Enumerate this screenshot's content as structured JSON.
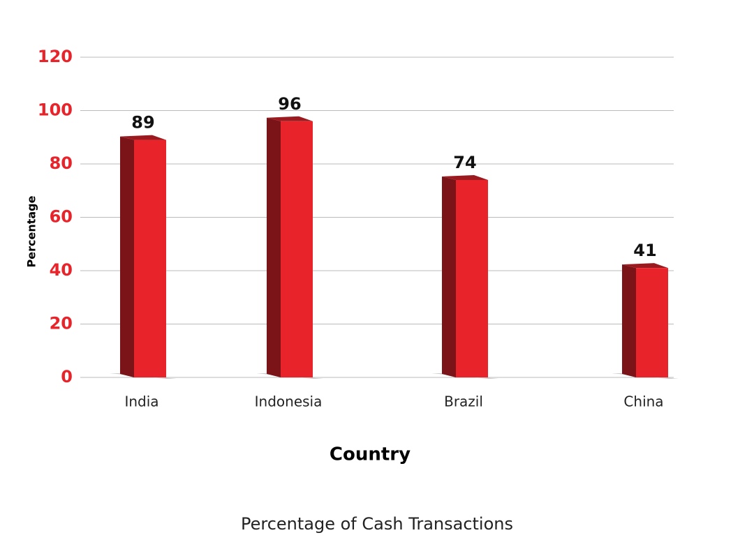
{
  "chart_data": {
    "type": "bar3d",
    "title": "Percentage of Cash Transactions",
    "x_label": "Country",
    "y_label": "Percentage",
    "categories": [
      "India",
      "Indonesia",
      "Brazil",
      "China"
    ],
    "values": [
      89,
      96,
      74,
      41
    ],
    "color": "#e8232a",
    "side_color": "#7a1418",
    "tick_color": "#e8232a",
    "ylim": [
      0,
      120
    ],
    "yticks": [
      0,
      20,
      40,
      60,
      80,
      100,
      120
    ],
    "grid": true
  }
}
